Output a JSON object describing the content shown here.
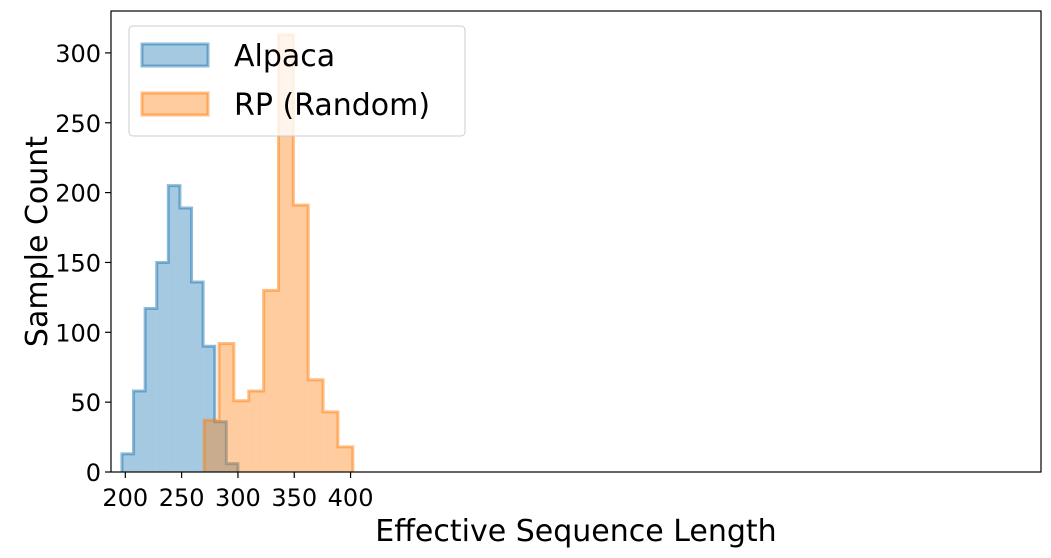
{
  "chart_data": {
    "type": "histogram",
    "xlabel": "Effective Sequence Length",
    "ylabel": "Sample Count",
    "xlim": [
      187,
      1013
    ],
    "ylim": [
      0,
      330
    ],
    "xticks": [
      200,
      250,
      300,
      350,
      400
    ],
    "yticks": [
      0,
      50,
      100,
      150,
      200,
      250,
      300
    ],
    "grid": false,
    "legend_position": "top-left",
    "series": [
      {
        "name": "Alpaca",
        "color": "#1f77b4",
        "bin_edges": [
          197,
          207.3,
          217.6,
          227.9,
          238.2,
          248.5,
          258.8,
          269.1,
          279.4,
          289.7,
          300
        ],
        "counts": [
          13,
          58,
          117,
          150,
          205,
          189,
          136,
          90,
          36,
          6
        ]
      },
      {
        "name": "RP (Random)",
        "color": "#ff7f0e",
        "bin_edges": [
          270,
          283.2,
          296.4,
          309.6,
          322.8,
          336,
          349.2,
          362.4,
          375.6,
          388.8,
          402
        ],
        "counts": [
          37,
          92,
          51,
          58,
          130,
          313,
          191,
          66,
          43,
          18
        ]
      }
    ]
  }
}
